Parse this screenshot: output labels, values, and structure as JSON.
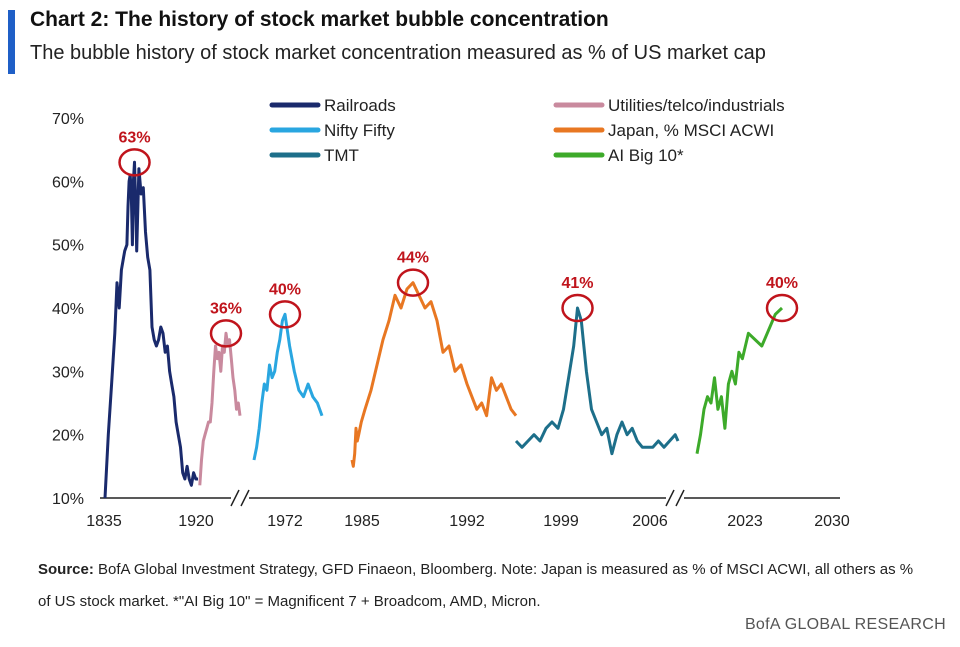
{
  "header": {
    "title": "Chart 2: The history of stock market bubble concentration",
    "subtitle": "The bubble history of stock market concentration measured as % of US market cap"
  },
  "source": {
    "label": "Source:",
    "text": "BofA Global Investment Strategy, GFD Finaeon, Bloomberg. Note: Japan is measured as % of MSCI ACWI, all others as % of US stock market. *\"AI Big 10\" = Magnificent 7 + Broadcom, AMD, Micron."
  },
  "footer": {
    "brand": "BofA GLOBAL RESEARCH"
  },
  "chart_data": {
    "type": "line",
    "ylim": [
      10,
      70
    ],
    "yticks": [
      "10%",
      "20%",
      "30%",
      "40%",
      "50%",
      "60%",
      "70%"
    ],
    "xticks": [
      "1835",
      "1920",
      "1972",
      "1985",
      "1992",
      "1999",
      "2006",
      "2023",
      "2030"
    ],
    "axis_breaks": "two breaks on x-axis (after 1920 segment and after 2006 segment)",
    "grid": false,
    "legend_position": "top",
    "series": [
      {
        "name": "Railroads",
        "color": "#1a2a6c",
        "peak_label": "63%",
        "x": [
          1835,
          1838,
          1841,
          1844,
          1846,
          1848,
          1850,
          1852,
          1853,
          1855,
          1856,
          1857,
          1858,
          1859,
          1860,
          1861,
          1862,
          1863,
          1864,
          1866,
          1868,
          1870,
          1872,
          1874,
          1876,
          1878,
          1880,
          1882,
          1884,
          1886,
          1888,
          1890,
          1892,
          1894,
          1896,
          1898,
          1900,
          1902,
          1904,
          1906,
          1908,
          1910,
          1912,
          1914,
          1916,
          1918,
          1920
        ],
        "values": [
          10,
          20,
          28,
          36,
          44,
          40,
          46,
          48,
          49,
          50,
          56,
          60,
          61,
          58,
          50,
          60,
          63,
          57,
          49,
          62,
          58,
          59,
          52,
          48,
          46,
          37,
          35,
          34,
          35,
          37,
          36,
          33,
          34,
          30,
          28,
          26,
          22,
          20,
          18,
          14,
          13,
          15,
          13,
          12,
          14,
          13,
          13
        ]
      },
      {
        "name": "Utilities/telco/industrials",
        "color": "#c98a9e",
        "peak_label": "36%",
        "x": [
          1921,
          1922,
          1923,
          1924,
          1925,
          1926,
          1927,
          1928,
          1929,
          1930,
          1931,
          1932,
          1933,
          1934,
          1935,
          1936,
          1937,
          1938,
          1939,
          1940,
          1941,
          1942,
          1943,
          1944
        ],
        "values": [
          12,
          16,
          19,
          20,
          21,
          22,
          22,
          25,
          30,
          34,
          32,
          33,
          30,
          34,
          33,
          36,
          34,
          35,
          32,
          29,
          27,
          24,
          25,
          23
        ]
      },
      {
        "name": "Nifty Fifty",
        "color": "#29a6e0",
        "peak_label": "40%",
        "x": [
          1960,
          1961,
          1962,
          1963,
          1964,
          1965,
          1966,
          1967,
          1968,
          1969,
          1970,
          1971,
          1972,
          1973,
          1974,
          1975,
          1976,
          1977,
          1978,
          1979,
          1980
        ],
        "values": [
          16,
          18,
          21,
          25,
          28,
          27,
          31,
          29,
          30,
          33,
          35,
          38,
          39,
          34,
          30,
          27,
          26,
          28,
          26,
          25,
          23
        ]
      },
      {
        "name": "Japan, % MSCI ACWI",
        "color": "#e87722",
        "peak_label": "44%",
        "x": [
          1982,
          1982.4,
          1982.8,
          1983.2,
          1983.6,
          1984,
          1984.4,
          1984.8,
          1985.2,
          1985.6,
          1986,
          1986.4,
          1986.8,
          1987.2,
          1987.6,
          1988,
          1988.4,
          1988.8,
          1989.2,
          1989.6,
          1990,
          1990.4,
          1990.8,
          1991.2,
          1991.6,
          1992,
          1992.4,
          1992.8,
          1993.2,
          1993.6,
          1994,
          1994.4,
          1994.8,
          1995.2,
          1995.6,
          1996
        ],
        "values": [
          16,
          15,
          17,
          21,
          19,
          20,
          21,
          22,
          24,
          27,
          31,
          35,
          38,
          42,
          40,
          43,
          44,
          42,
          40,
          41,
          38,
          33,
          34,
          30,
          31,
          28,
          26,
          24,
          25,
          23,
          29,
          27,
          28,
          26,
          24,
          23
        ]
      },
      {
        "name": "TMT",
        "color": "#1d6f8a",
        "peak_label": "41%",
        "x": [
          1996,
          1996.4,
          1996.8,
          1997.2,
          1997.6,
          1998,
          1998.4,
          1998.8,
          1999.2,
          1999.6,
          2000,
          2000.3,
          2000.6,
          2001,
          2001.4,
          2001.8,
          2002.2,
          2002.6,
          2003,
          2003.4,
          2003.8,
          2004.2,
          2004.6,
          2005,
          2005.4,
          2005.8,
          2006.2,
          2006.6,
          2007,
          2007.4,
          2007.8,
          2008
        ],
        "values": [
          19,
          18,
          19,
          20,
          19,
          21,
          22,
          21,
          24,
          29,
          34,
          40,
          38,
          30,
          24,
          22,
          20,
          21,
          17,
          20,
          22,
          20,
          21,
          19,
          18,
          18,
          18,
          19,
          18,
          19,
          20,
          19
        ]
      },
      {
        "name": "AI Big 10*",
        "color": "#3daa2a",
        "peak_label": "40%",
        "x": [
          2012,
          2012.8,
          2013.6,
          2014.4,
          2015.2,
          2016,
          2016.8,
          2017.6,
          2018.4,
          2019.2,
          2020,
          2020.8,
          2021.6,
          2022.4,
          2023.2,
          2024,
          2024.8,
          2025.2
        ],
        "values": [
          17,
          20,
          24,
          26,
          25,
          29,
          24,
          26,
          21,
          28,
          30,
          28,
          33,
          32,
          36,
          34,
          39,
          40
        ]
      }
    ]
  }
}
